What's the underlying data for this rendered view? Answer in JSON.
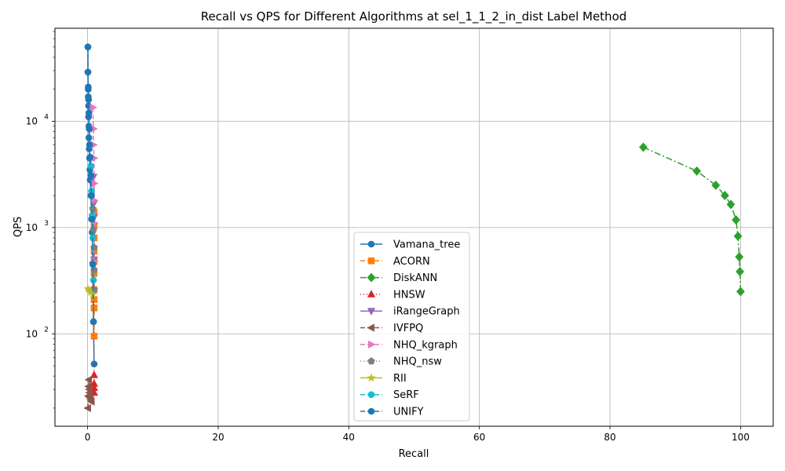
{
  "chart_data": {
    "type": "line",
    "title": "Recall vs QPS for Different Algorithms at sel_1_1_2_in_dist Label Method",
    "xlabel": "Recall",
    "ylabel": "QPS",
    "xlim": [
      -5,
      105
    ],
    "ylim": [
      13.5,
      75000
    ],
    "yscale": "log",
    "grid": true,
    "legend_position": "lower-center",
    "x_ticks": [
      "0",
      "20",
      "40",
      "60",
      "80",
      "100"
    ],
    "x_tick_values": [
      0,
      20,
      40,
      60,
      80,
      100
    ],
    "y_tick_values": [
      100,
      1000,
      10000
    ],
    "y_tick_labels": [
      {
        "base": "10",
        "exp": "2"
      },
      {
        "base": "10",
        "exp": "3"
      },
      {
        "base": "10",
        "exp": "4"
      }
    ],
    "series": [
      {
        "name": "Vamana_tree",
        "color": "#1f77b4",
        "dash": "",
        "marker": "circle",
        "x": [
          0.05,
          0.05,
          0.1,
          0.1,
          0.15,
          0.15,
          0.2,
          0.2,
          0.25,
          0.3,
          0.35,
          0.4,
          0.5,
          0.6,
          0.7,
          0.8,
          0.9,
          1.0
        ],
        "y": [
          50000,
          29000,
          21000,
          17000,
          14000,
          11000,
          9000,
          7000,
          5500,
          4500,
          3500,
          2800,
          2000,
          1200,
          900,
          460,
          130,
          52
        ]
      },
      {
        "name": "ACORN",
        "color": "#ff7f0e",
        "dash": "6,3",
        "marker": "square",
        "x": [
          1.0,
          1.0,
          1.0,
          1.0,
          1.0,
          1.0,
          1.0,
          1.0,
          1.0,
          1.0
        ],
        "y": [
          1400,
          1050,
          800,
          600,
          480,
          370,
          260,
          210,
          175,
          95
        ]
      },
      {
        "name": "DiskANN",
        "color": "#2ca02c",
        "dash": "8,3,2,3",
        "marker": "diamond",
        "x": [
          85.1,
          93.3,
          96.2,
          97.6,
          98.5,
          99.3,
          99.6,
          99.8,
          99.9,
          100.0
        ],
        "y": [
          5700,
          3400,
          2500,
          2000,
          1650,
          1180,
          830,
          530,
          385,
          250
        ]
      },
      {
        "name": "HNSW",
        "color": "#d62728",
        "dash": "1,3",
        "marker": "triangle-up",
        "x": [
          0.9,
          1.0,
          1.0,
          1.0,
          1.0
        ],
        "y": [
          270,
          41,
          34,
          31,
          28
        ]
      },
      {
        "name": "iRangeGraph",
        "color": "#9467bd",
        "dash": "",
        "marker": "triangle-down",
        "x": [
          0.9,
          1.0,
          1.0,
          1.0
        ],
        "y": [
          3000,
          1700,
          1250,
          500
        ]
      },
      {
        "name": "IVFPQ",
        "color": "#8c564b",
        "dash": "6,3",
        "marker": "triangle-left",
        "x": [
          0.05,
          0.1,
          0.15,
          0.2,
          0.25,
          0.3,
          0.35,
          0.4,
          0.5,
          0.6
        ],
        "y": [
          20,
          26,
          32,
          37,
          30,
          28,
          26,
          25,
          24,
          23
        ]
      },
      {
        "name": "NHQ_kgraph",
        "color": "#e377c2",
        "dash": "6,3",
        "marker": "triangle-right",
        "x": [
          0.8,
          0.9,
          0.9,
          1.0,
          1.0,
          1.0,
          1.0,
          1.0
        ],
        "y": [
          13500,
          8500,
          6000,
          4500,
          2600,
          1800,
          1100,
          480
        ]
      },
      {
        "name": "NHQ_nsw",
        "color": "#7f7f7f",
        "dash": "1,3",
        "marker": "pentagon",
        "x": [
          0.8,
          0.9,
          1.0,
          1.0,
          1.0
        ],
        "y": [
          1500,
          950,
          650,
          400,
          260
        ]
      },
      {
        "name": "RII",
        "color": "#bcbd22",
        "dash": "",
        "marker": "star",
        "x": [
          0.05,
          0.3,
          0.5,
          0.8
        ],
        "y": [
          265,
          255,
          245,
          235
        ]
      },
      {
        "name": "SeRF",
        "color": "#17becf",
        "dash": "6,3",
        "marker": "circle",
        "x": [
          0.5,
          0.6,
          0.7,
          0.8,
          0.9
        ],
        "y": [
          3800,
          2200,
          1300,
          800,
          320
        ]
      },
      {
        "name": "UNIFY",
        "color": "#1f77b4",
        "dash": "6,3",
        "marker": "circle",
        "x": [
          0.05,
          0.05,
          0.1,
          0.15,
          0.2,
          0.25,
          0.3,
          0.4,
          0.5,
          0.6,
          0.7,
          0.8,
          0.9
        ],
        "y": [
          50000,
          29000,
          20000,
          16000,
          12000,
          8500,
          6000,
          4600,
          3100,
          2000,
          1200,
          450,
          130
        ]
      }
    ]
  }
}
